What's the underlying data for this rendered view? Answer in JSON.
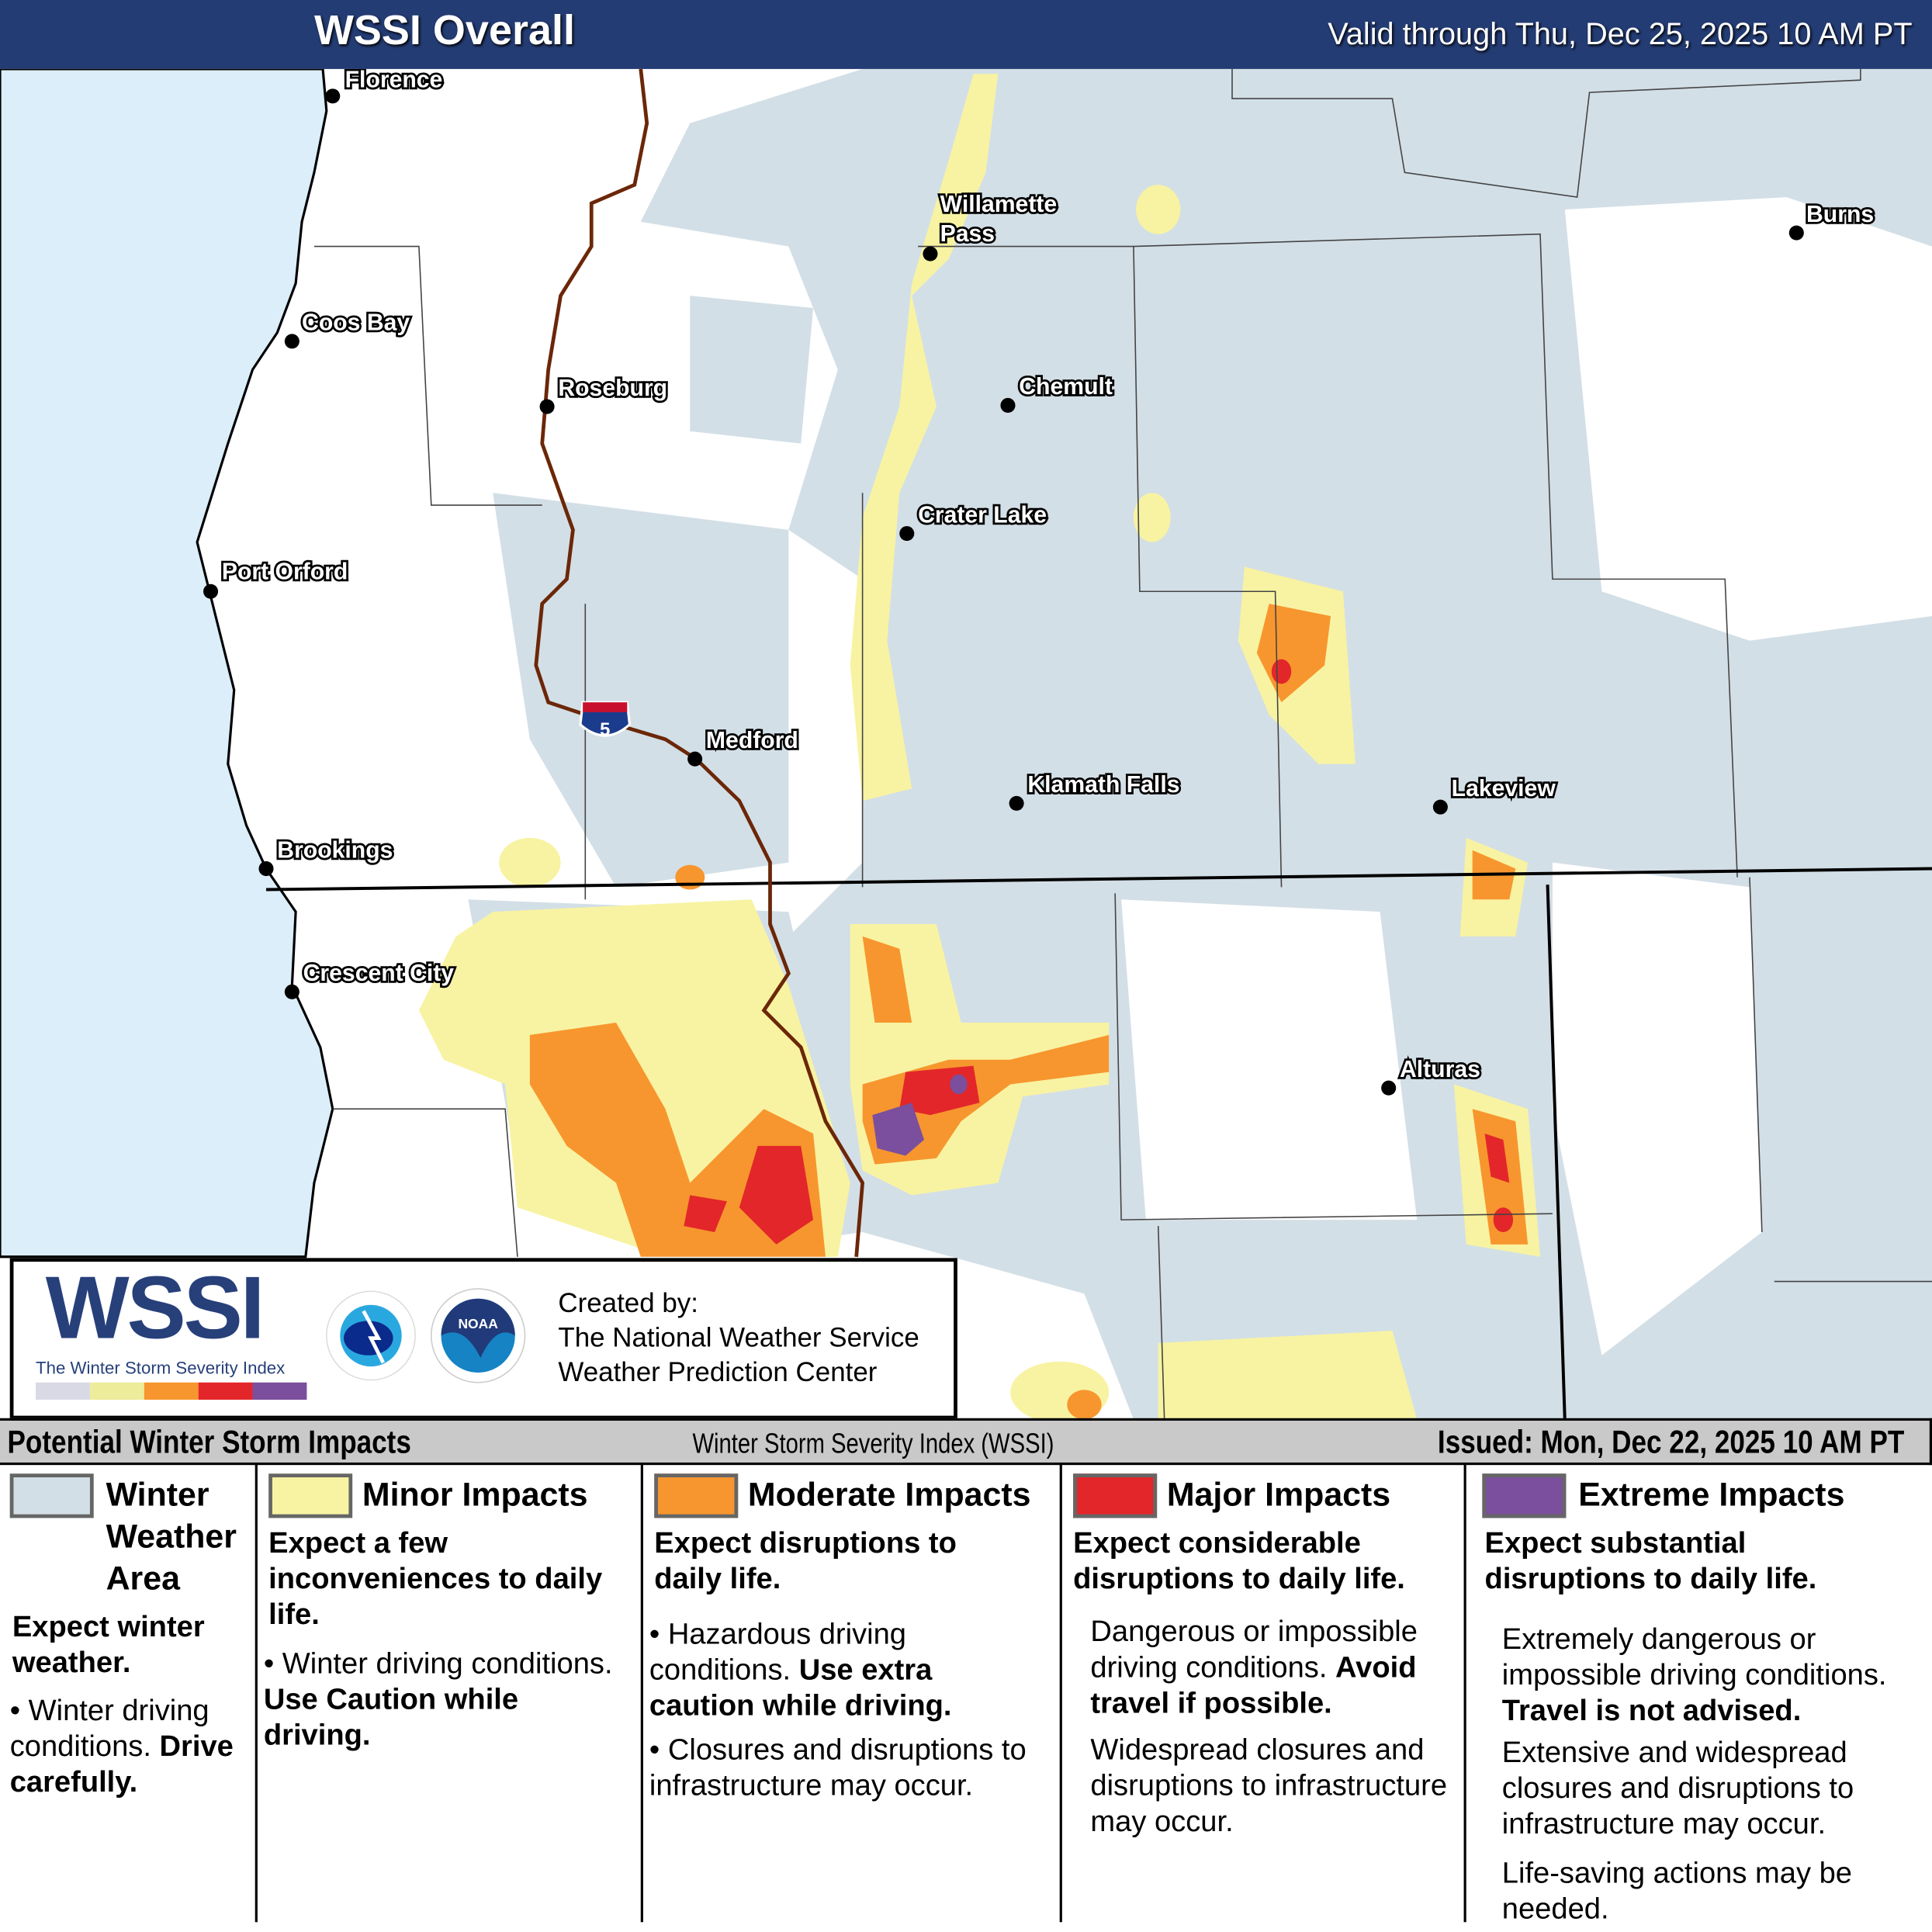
{
  "header": {
    "title": "WSSI Overall",
    "valid": "Valid through Thu, Dec 25, 2025 10 AM PT"
  },
  "map": {
    "cities": [
      "Florence",
      "Willamette Pass",
      "Burns",
      "Coos Bay",
      "Roseburg",
      "Chemult",
      "Crater Lake",
      "Port Orford",
      "Medford",
      "Klamath Falls",
      "Lakeview",
      "Brookings",
      "Crescent City",
      "Alturas"
    ],
    "highway_shield": "5",
    "colors": {
      "ocean": "#dbeefa",
      "winter": "#d3dfe6",
      "minor": "#f8f3a2",
      "moderate": "#f7962e",
      "major": "#e3262a",
      "extreme": "#7b4f9d"
    }
  },
  "logo": {
    "wordmark": "WSSI",
    "subtitle": "The Winter Storm Severity Index",
    "nws_text": "NATIONAL WEATHER SERVICE",
    "noaa_text": "NOAA",
    "created_by": "Created by:",
    "org1": "The National Weather Service",
    "org2": "Weather Prediction Center",
    "scale_colors": [
      "#d9d9e6",
      "#ecec9a",
      "#f7962e",
      "#e3262a",
      "#7b4f9d"
    ]
  },
  "legend_header": {
    "left": "Potential Winter Storm Impacts",
    "center": "Winter Storm Severity Index (WSSI)",
    "right": "Issued: Mon, Dec 22, 2025 10 AM PT"
  },
  "legend": [
    {
      "title": "Winter Weather Area",
      "summary": "Expect winter weather.",
      "detail": "Winter driving conditions.",
      "detail_bold": "Drive carefully.",
      "color": "#d3dfe6"
    },
    {
      "title": "Minor Impacts",
      "summary": "Expect a few inconveniences to daily life.",
      "detail": "Winter driving conditions.",
      "detail_bold": "Use Caution while driving.",
      "color": "#f8f3a2"
    },
    {
      "title": "Moderate Impacts",
      "summary": "Expect disruptions to daily life.",
      "detail": "Hazardous driving conditions.",
      "detail_bold": "Use extra caution while driving.",
      "detail2": "Closures and disruptions to infrastructure may occur.",
      "color": "#f7962e"
    },
    {
      "title": "Major Impacts",
      "summary": "Expect considerable disruptions to daily life.",
      "detail": "Dangerous or impossible driving conditions.",
      "detail_bold": "Avoid travel if possible.",
      "detail2": "Widespread closures and disruptions to infrastructure may occur.",
      "color": "#e3262a"
    },
    {
      "title": "Extreme Impacts",
      "summary": "Expect substantial disruptions to daily life.",
      "detail": "Extremely dangerous or impossible driving conditions.",
      "detail_bold": "Travel is not advised.",
      "detail2": "Extensive and widespread closures and disruptions to infrastructure may occur.",
      "detail3": "Life-saving actions may be needed.",
      "color": "#7b4f9d"
    }
  ]
}
